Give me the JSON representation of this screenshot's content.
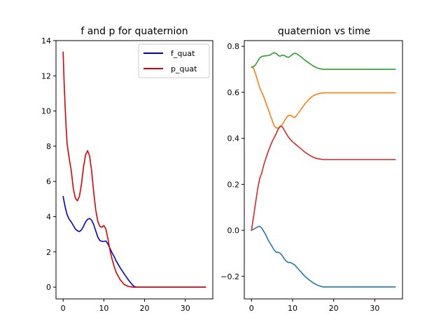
{
  "figure": {
    "background": "#ffffff"
  },
  "chart_data": [
    {
      "type": "line",
      "title": "f and p for quaternion",
      "xlabel": "",
      "ylabel": "",
      "xlim": [
        -1.75,
        36.75
      ],
      "ylim": [
        -0.67,
        14.0
      ],
      "xticks": [
        0,
        10,
        20,
        30
      ],
      "yticks": [
        0,
        2,
        4,
        6,
        8,
        10,
        12,
        14
      ],
      "legend": {
        "placement": "top-right"
      },
      "grid": false,
      "series": [
        {
          "name": "f_quat",
          "color": "#0000cc",
          "x": [
            0,
            0.5,
            1,
            1.5,
            2,
            2.5,
            3,
            3.5,
            4,
            4.5,
            5,
            5.5,
            6,
            6.5,
            7,
            7.5,
            8,
            8.5,
            9,
            9.5,
            10,
            10.5,
            11,
            11.5,
            12,
            12.5,
            13,
            13.5,
            14,
            15,
            16,
            17,
            17.5,
            18,
            20,
            25,
            30,
            35
          ],
          "y": [
            5.15,
            4.55,
            4.1,
            3.85,
            3.7,
            3.5,
            3.3,
            3.2,
            3.15,
            3.25,
            3.45,
            3.7,
            3.85,
            3.9,
            3.8,
            3.55,
            3.2,
            2.85,
            2.65,
            2.6,
            2.6,
            2.62,
            2.45,
            2.2,
            1.95,
            1.75,
            1.5,
            1.3,
            1.1,
            0.75,
            0.42,
            0.13,
            0.03,
            0.0,
            0.0,
            0.0,
            0.0,
            0.0
          ]
        },
        {
          "name": "p_quat",
          "color": "#dd0000",
          "x": [
            0,
            0.25,
            0.5,
            0.75,
            1,
            1.5,
            2,
            2.5,
            3,
            3.5,
            4,
            4.5,
            5,
            5.5,
            6,
            6.5,
            7,
            7.5,
            8,
            8.5,
            9,
            9.5,
            10,
            10.5,
            11,
            11.5,
            12,
            12.5,
            13,
            14,
            15,
            16,
            17,
            18,
            20,
            25,
            30,
            35
          ],
          "y": [
            13.35,
            11.6,
            10.2,
            9.0,
            8.1,
            7.3,
            6.6,
            5.6,
            5.05,
            4.9,
            5.15,
            5.85,
            6.8,
            7.5,
            7.75,
            7.45,
            6.6,
            5.4,
            4.4,
            3.75,
            3.45,
            3.4,
            3.5,
            3.3,
            2.75,
            2.1,
            1.6,
            1.2,
            0.85,
            0.42,
            0.15,
            0.04,
            0.0,
            0.0,
            0.0,
            0.0,
            0.0,
            0.0
          ]
        }
      ]
    },
    {
      "type": "line",
      "title": "quaternion vs time",
      "xlabel": "",
      "ylabel": "",
      "xlim": [
        -1.75,
        36.75
      ],
      "ylim": [
        -0.298,
        0.825
      ],
      "xticks": [
        0,
        10,
        20,
        30
      ],
      "yticks": [
        -0.2,
        0.0,
        0.2,
        0.4,
        0.6,
        0.8
      ],
      "ytick_labels": [
        "−0.2",
        "0.0",
        "0.2",
        "0.4",
        "0.6",
        "0.8"
      ],
      "grid": false,
      "series": [
        {
          "color": "#1f77b4",
          "x": [
            0,
            0.5,
            1,
            1.5,
            2,
            2.5,
            3,
            3.5,
            4,
            4.5,
            5,
            5.5,
            6,
            6.5,
            7,
            7.5,
            8,
            8.5,
            9,
            9.5,
            10,
            10.5,
            11,
            12,
            13,
            14,
            15,
            16,
            17,
            17.5,
            20,
            25,
            30,
            35
          ],
          "y": [
            0.0,
            0.005,
            0.01,
            0.015,
            0.018,
            0.01,
            -0.005,
            -0.02,
            -0.04,
            -0.055,
            -0.07,
            -0.085,
            -0.095,
            -0.095,
            -0.1,
            -0.11,
            -0.125,
            -0.135,
            -0.14,
            -0.14,
            -0.145,
            -0.15,
            -0.16,
            -0.18,
            -0.2,
            -0.215,
            -0.228,
            -0.238,
            -0.244,
            -0.246,
            -0.246,
            -0.246,
            -0.246,
            -0.246
          ]
        },
        {
          "color": "#ff7f0e",
          "x": [
            0,
            0.5,
            1,
            1.5,
            2,
            3,
            4,
            5,
            5.5,
            6,
            6.5,
            7,
            7.5,
            8,
            8.5,
            9,
            9.5,
            10,
            10.5,
            11,
            12,
            13,
            14,
            15,
            16,
            17,
            17.5,
            20,
            25,
            30,
            35
          ],
          "y": [
            0.71,
            0.705,
            0.68,
            0.65,
            0.62,
            0.58,
            0.53,
            0.48,
            0.455,
            0.445,
            0.445,
            0.45,
            0.46,
            0.475,
            0.49,
            0.5,
            0.5,
            0.495,
            0.49,
            0.5,
            0.525,
            0.55,
            0.57,
            0.585,
            0.593,
            0.597,
            0.598,
            0.598,
            0.598,
            0.598,
            0.598
          ]
        },
        {
          "color": "#2ca02c",
          "x": [
            0,
            0.5,
            1,
            1.5,
            2,
            2.5,
            3,
            4,
            4.5,
            5,
            5.5,
            6,
            6.5,
            7,
            7.5,
            8,
            8.5,
            9,
            9.5,
            10,
            10.5,
            11,
            12,
            13,
            14,
            15,
            16,
            17,
            17.5,
            20,
            25,
            30,
            35
          ],
          "y": [
            0.71,
            0.712,
            0.72,
            0.735,
            0.75,
            0.756,
            0.758,
            0.76,
            0.762,
            0.768,
            0.772,
            0.77,
            0.76,
            0.757,
            0.762,
            0.76,
            0.755,
            0.752,
            0.758,
            0.766,
            0.77,
            0.768,
            0.755,
            0.74,
            0.727,
            0.715,
            0.706,
            0.701,
            0.7,
            0.7,
            0.7,
            0.7,
            0.7
          ]
        },
        {
          "color": "#d62728",
          "x": [
            0,
            0.5,
            1,
            1.5,
            2,
            2.5,
            3,
            4,
            5,
            6,
            6.5,
            7,
            7.5,
            8,
            8.5,
            9,
            9.5,
            10,
            10.5,
            11,
            12,
            13,
            14,
            15,
            16,
            17,
            17.5,
            20,
            25,
            30,
            35
          ],
          "y": [
            0.0,
            0.06,
            0.12,
            0.18,
            0.225,
            0.25,
            0.285,
            0.34,
            0.385,
            0.42,
            0.44,
            0.453,
            0.45,
            0.435,
            0.42,
            0.405,
            0.395,
            0.385,
            0.378,
            0.37,
            0.355,
            0.34,
            0.328,
            0.318,
            0.312,
            0.309,
            0.308,
            0.308,
            0.308,
            0.308,
            0.308
          ]
        }
      ]
    }
  ]
}
